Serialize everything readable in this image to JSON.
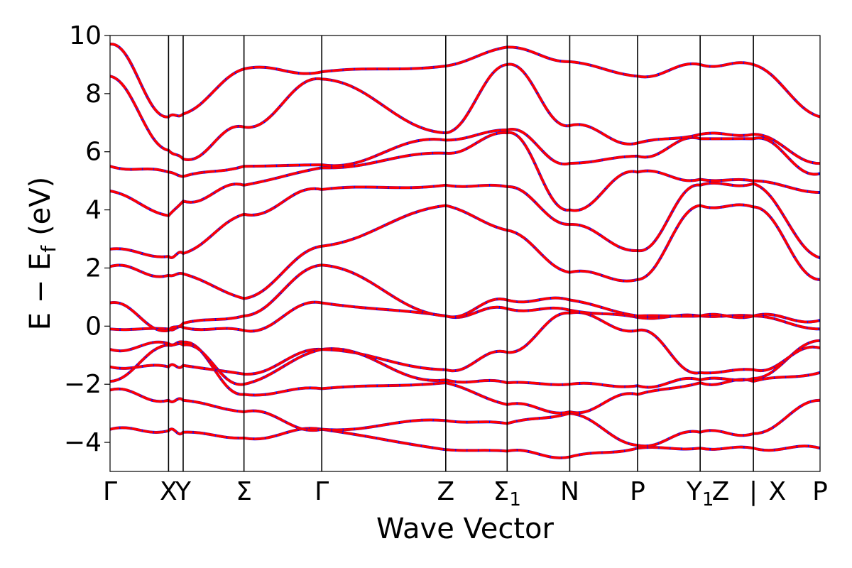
{
  "chart_data": {
    "type": "line",
    "title": "",
    "xlabel": "Wave Vector",
    "ylabel_main": "E − E",
    "ylabel_sub": "f",
    "ylabel_unit": "(eV)",
    "ylim": [
      -5,
      10
    ],
    "yticks": [
      {
        "value": 10,
        "label": "10"
      },
      {
        "value": 8,
        "label": "8"
      },
      {
        "value": 6,
        "label": "6"
      },
      {
        "value": 4,
        "label": "4"
      },
      {
        "value": 2,
        "label": "2"
      },
      {
        "value": 0,
        "label": "0"
      },
      {
        "value": -2,
        "label": "−2"
      },
      {
        "value": -4,
        "label": "−4"
      }
    ],
    "xlim": [
      0,
      11.0
    ],
    "kpoints": [
      {
        "x": 0.0,
        "main": "Γ",
        "sub": "",
        "line": false
      },
      {
        "x": 1.0,
        "main": "X",
        "sub": "",
        "line": true
      },
      {
        "x": 1.25,
        "main": "Y",
        "sub": "",
        "line": true
      },
      {
        "x": 2.29,
        "main": "Σ",
        "sub": "",
        "line": true
      },
      {
        "x": 3.62,
        "main": "Γ",
        "sub": "",
        "line": true
      },
      {
        "x": 5.74,
        "main": "Z",
        "sub": "",
        "line": true
      },
      {
        "x": 6.79,
        "main": "Σ",
        "sub": "1",
        "line": true
      },
      {
        "x": 7.86,
        "main": "N",
        "sub": "",
        "line": true
      },
      {
        "x": 9.02,
        "main": "P",
        "sub": "",
        "line": true
      },
      {
        "x": 10.09,
        "main": "Y",
        "sub": "1",
        "line": true
      },
      {
        "x": 10.44,
        "main": "Z",
        "sub": "",
        "line": false
      },
      {
        "x": 11.0,
        "main": "|",
        "sub": "",
        "line": true
      },
      {
        "x": 11.41,
        "main": "X",
        "sub": "",
        "line": false
      },
      {
        "x": 12.14,
        "main": "P",
        "sub": "",
        "line": false
      }
    ],
    "segments": [
      {
        "from": 0.0,
        "to": 1.0,
        "label": "Γ–X"
      },
      {
        "from": 1.0,
        "to": 1.25,
        "label": "X–Y"
      },
      {
        "from": 1.25,
        "to": 2.29,
        "label": "Y–Σ"
      },
      {
        "from": 2.29,
        "to": 3.62,
        "label": "Σ–Γ"
      },
      {
        "from": 3.62,
        "to": 5.74,
        "label": "Γ–Z"
      },
      {
        "from": 5.74,
        "to": 6.79,
        "label": "Z–Σ1"
      },
      {
        "from": 6.79,
        "to": 7.86,
        "label": "Σ1–N"
      },
      {
        "from": 7.86,
        "to": 9.02,
        "label": "N–P"
      },
      {
        "from": 9.02,
        "to": 10.09,
        "label": "P–Y1"
      },
      {
        "from": 10.09,
        "to": 11.0,
        "label": "Y1–Z"
      },
      {
        "from": 11.0,
        "to": 12.14,
        "label": "X–P"
      }
    ],
    "series": [
      {
        "color": "#0000ff",
        "style": "solid"
      },
      {
        "color": "#ff0000",
        "style": "dashed"
      }
    ],
    "band_values_at_kpoints": [
      [
        -3.55,
        -3.6,
        -3.65,
        -3.85,
        -3.55,
        -4.25,
        -4.3,
        -4.5,
        -4.2,
        -4.2,
        -4.2,
        -4.2
      ],
      [
        -2.2,
        -2.55,
        -2.55,
        -2.95,
        -3.55,
        -3.25,
        -3.35,
        -3.0,
        -4.1,
        -3.65,
        -3.7,
        -2.55
      ],
      [
        -1.9,
        -0.65,
        -0.55,
        -2.35,
        -2.15,
        -1.95,
        -2.7,
        -2.95,
        -2.35,
        -1.95,
        -1.9,
        -1.6
      ],
      [
        -1.4,
        -1.4,
        -1.35,
        -1.65,
        -0.8,
        -1.85,
        -1.95,
        -2.0,
        -2.05,
        -1.85,
        -1.8,
        -0.5
      ],
      [
        -0.8,
        -0.6,
        -0.65,
        -2.0,
        -0.8,
        -1.5,
        -0.9,
        0.45,
        -0.15,
        -1.6,
        -1.5,
        -0.75
      ],
      [
        -0.1,
        -0.1,
        -0.05,
        -0.15,
        0.8,
        0.35,
        0.6,
        0.55,
        0.3,
        0.35,
        0.35,
        -0.1
      ],
      [
        0.8,
        -0.15,
        0.1,
        0.35,
        2.1,
        0.35,
        0.9,
        0.9,
        0.35,
        0.35,
        0.35,
        0.2
      ],
      [
        2.05,
        1.75,
        1.8,
        0.95,
        2.75,
        4.15,
        3.3,
        1.85,
        1.6,
        4.15,
        4.1,
        1.6
      ],
      [
        2.65,
        2.4,
        2.5,
        3.85,
        4.7,
        4.85,
        4.8,
        3.5,
        2.6,
        4.85,
        4.9,
        2.35
      ],
      [
        4.65,
        3.8,
        4.3,
        4.85,
        5.45,
        5.95,
        6.65,
        4.0,
        5.3,
        5.05,
        5.0,
        4.6
      ],
      [
        5.5,
        5.3,
        5.15,
        5.5,
        5.55,
        6.4,
        6.75,
        5.6,
        5.85,
        6.45,
        6.45,
        5.25
      ],
      [
        8.6,
        6.05,
        5.75,
        6.85,
        8.5,
        6.65,
        9.0,
        6.9,
        6.3,
        6.6,
        6.6,
        5.6
      ],
      [
        9.7,
        7.2,
        7.3,
        8.85,
        8.75,
        8.95,
        9.6,
        9.1,
        8.6,
        9.0,
        9.0,
        7.2
      ]
    ]
  }
}
